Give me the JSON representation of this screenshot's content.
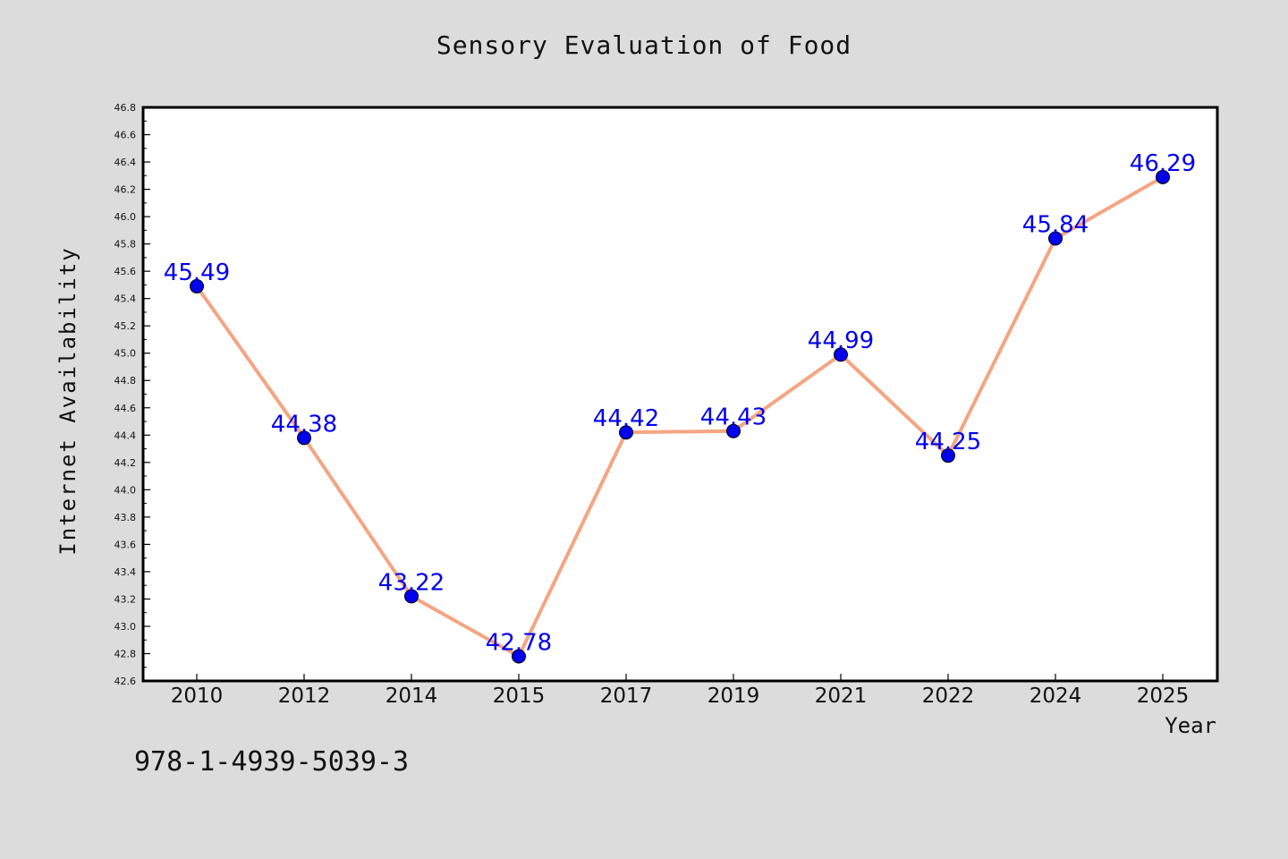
{
  "chart_data": {
    "type": "line",
    "title": "Sensory Evaluation of Food",
    "xlabel": "Year",
    "ylabel": "Internet Availability",
    "categories": [
      "2010",
      "2012",
      "2014",
      "2015",
      "2017",
      "2019",
      "2021",
      "2022",
      "2024",
      "2025"
    ],
    "values": [
      45.49,
      44.38,
      43.22,
      42.78,
      44.42,
      44.43,
      44.99,
      44.25,
      45.84,
      46.29
    ],
    "data_labels": [
      "45.49",
      "44.38",
      "43.22",
      "42.78",
      "44.42",
      "44.43",
      "44.99",
      "44.25",
      "45.84",
      "46.29"
    ],
    "ylim": [
      42.6,
      46.8
    ],
    "yticks": [
      "42.6",
      "42.8",
      "43.0",
      "43.2",
      "43.4",
      "43.6",
      "43.8",
      "44.0",
      "44.2",
      "44.4",
      "44.6",
      "44.8",
      "45.0",
      "45.2",
      "45.4",
      "45.6",
      "45.8",
      "46.0",
      "46.2",
      "46.4",
      "46.6",
      "46.8"
    ],
    "ytick_step": 0.2,
    "grid": false,
    "legend": "none",
    "colors": {
      "line": "#f4a582",
      "marker": "#0000ee",
      "label": "#0000ee",
      "background": "#dcdcdc",
      "plot_background": "#ffffff"
    }
  },
  "annotation": "978-1-4939-5039-3"
}
